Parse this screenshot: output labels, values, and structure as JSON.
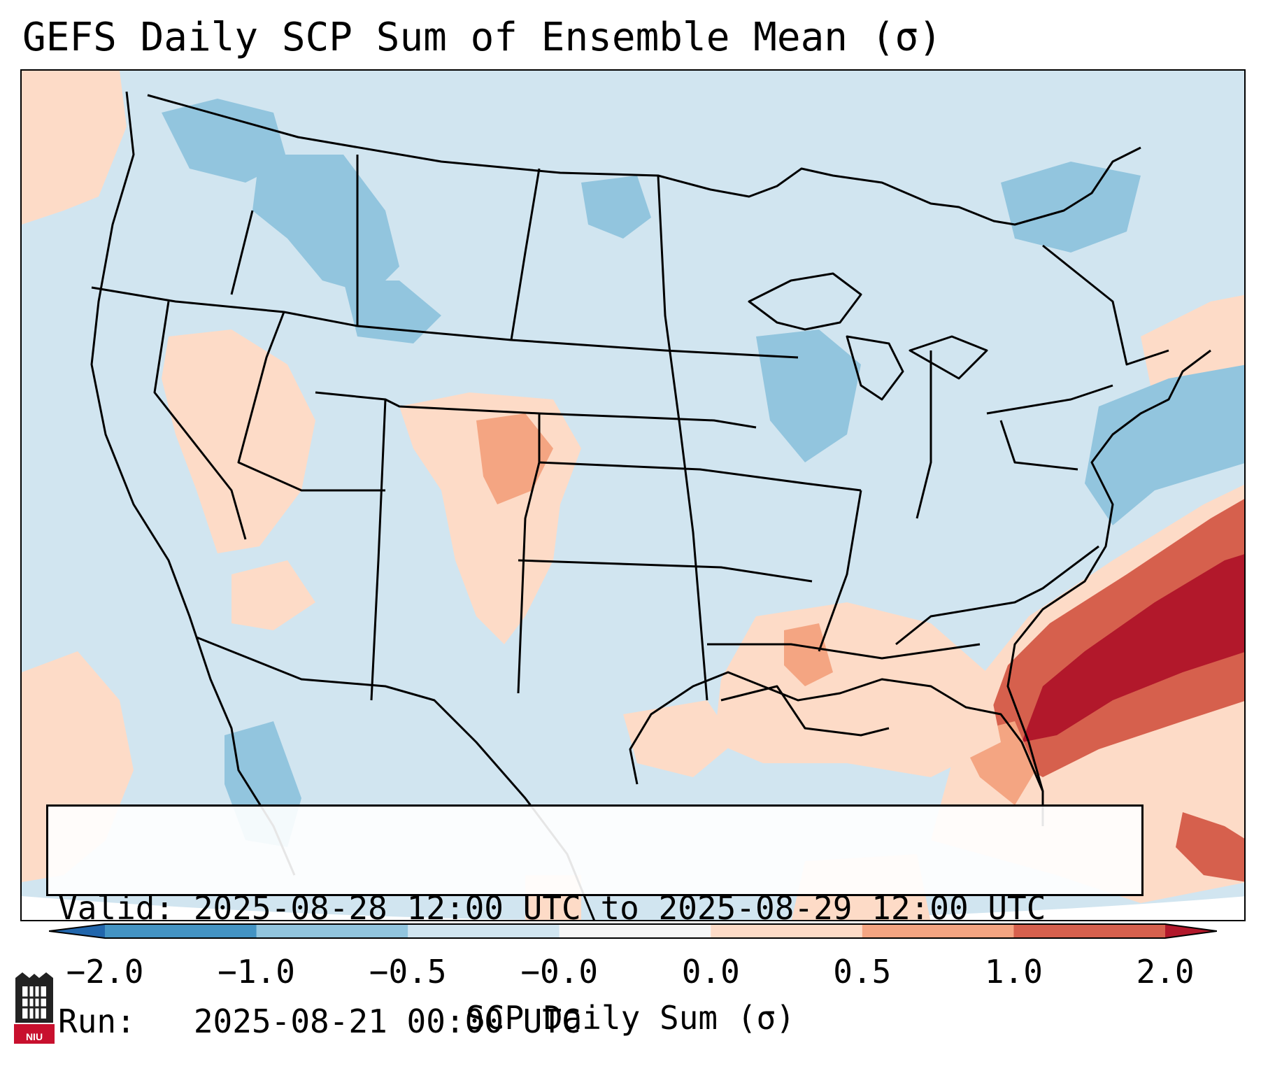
{
  "title": "GEFS Daily SCP Sum of Ensemble Mean (σ)",
  "info": {
    "valid_line": "Valid: 2025-08-28 12:00 UTC to 2025-08-29 12:00 UTC",
    "run_line": "Run:   2025-08-21 00:00 UTC"
  },
  "colorbar": {
    "label": "SCP Daily Sum (σ)",
    "ticks": [
      "−2.0",
      "−1.0",
      "−0.5",
      "−0.0",
      "0.0",
      "0.5",
      "1.0",
      "2.0"
    ],
    "bins": [
      {
        "range": "< -2.0",
        "color": "#2166ac"
      },
      {
        "range": "-2.0 to -1.0",
        "color": "#4393c3"
      },
      {
        "range": "-1.0 to -0.5",
        "color": "#92c5de"
      },
      {
        "range": "-0.5 to -0.0",
        "color": "#d1e5f0"
      },
      {
        "range": "-0.0 to 0.0",
        "color": "#f7f7f7"
      },
      {
        "range": "0.0 to 0.5",
        "color": "#fddbc7"
      },
      {
        "range": "0.5 to 1.0",
        "color": "#f4a582"
      },
      {
        "range": "1.0 to 2.0",
        "color": "#d6604d"
      },
      {
        "range": "> 2.0",
        "color": "#b2182b"
      }
    ]
  },
  "logo": {
    "text": "NIU",
    "color": "#c8102e"
  },
  "map": {
    "background_color": "#d1e5f0",
    "regions": [
      {
        "name": "southeast-coast-max",
        "category": "1.0 to 2.0+"
      },
      {
        "name": "gulf-coast-south",
        "category": "0.0 to 0.5"
      },
      {
        "name": "high-plains-colorado",
        "category": "0.0 to 1.0"
      },
      {
        "name": "great-basin-nevada",
        "category": "0.0 to 0.5"
      },
      {
        "name": "northern-rockies-montana",
        "category": "-1.0 to -0.5"
      },
      {
        "name": "great-lakes",
        "category": "-1.0 to -0.5"
      },
      {
        "name": "northeast-atlantic-offshore",
        "category": "-1.0 to -0.5"
      }
    ]
  }
}
